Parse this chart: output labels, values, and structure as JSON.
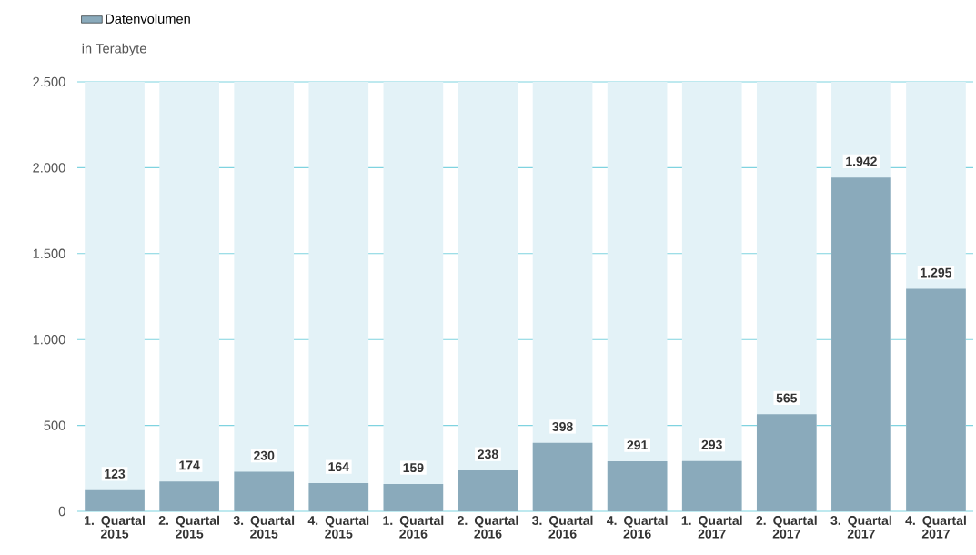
{
  "chart_data": {
    "type": "bar",
    "ylabel": "in Terabyte",
    "categories": [
      "1. Quartal 2015",
      "2. Quartal 2015",
      "3. Quartal 2015",
      "4. Quartal 2015",
      "1. Quartal 2016",
      "2. Quartal 2016",
      "3. Quartal 2016",
      "4. Quartal 2016",
      "1. Quartal 2017",
      "2. Quartal 2017",
      "3. Quartal 2017",
      "4. Quartal 2017"
    ],
    "series": [
      {
        "name": "Datenvolumen",
        "color": "#8aaabb",
        "values": [
          123,
          174,
          230,
          164,
          159,
          238,
          398,
          291,
          293,
          565,
          1942,
          1295
        ],
        "value_labels": [
          "123",
          "174",
          "230",
          "164",
          "159",
          "238",
          "398",
          "291",
          "293",
          "565",
          "1.942",
          "1.295"
        ]
      }
    ],
    "ylim": [
      0,
      2500
    ],
    "yticks": [
      {
        "value": 0,
        "label": "0"
      },
      {
        "value": 500,
        "label": "500"
      },
      {
        "value": 1000,
        "label": "1.000"
      },
      {
        "value": 1500,
        "label": "1.500"
      },
      {
        "value": 2000,
        "label": "2.000"
      },
      {
        "value": 2500,
        "label": "2.500"
      }
    ],
    "grid": "y",
    "legend": "top left"
  }
}
